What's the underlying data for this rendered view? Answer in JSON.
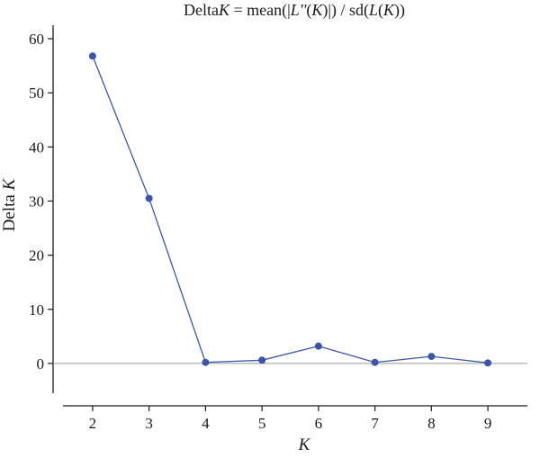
{
  "chart_data": {
    "type": "line",
    "title_parts": [
      {
        "text": "Delta",
        "italic": false
      },
      {
        "text": "K",
        "italic": true
      },
      {
        "text": " = mean(|",
        "italic": false
      },
      {
        "text": "L''",
        "italic": true
      },
      {
        "text": "(",
        "italic": false
      },
      {
        "text": "K",
        "italic": true
      },
      {
        "text": ")|) / sd(",
        "italic": false
      },
      {
        "text": "L",
        "italic": true
      },
      {
        "text": "(",
        "italic": false
      },
      {
        "text": "K",
        "italic": true
      },
      {
        "text": "))",
        "italic": false
      }
    ],
    "xlabel": "K",
    "ylabel_parts": [
      {
        "text": "Delta ",
        "italic": false
      },
      {
        "text": "K",
        "italic": true
      }
    ],
    "x": [
      2,
      3,
      4,
      5,
      6,
      7,
      8,
      9
    ],
    "series": [
      {
        "values": [
          56.8,
          30.5,
          0.2,
          0.6,
          3.2,
          0.2,
          1.3,
          0.1
        ],
        "color": "#3a56a8"
      }
    ],
    "xlim": [
      1.3,
      9.7
    ],
    "ylim": [
      -5.5,
      62.5
    ],
    "xticks": [
      "2",
      "3",
      "4",
      "5",
      "6",
      "7",
      "8",
      "9"
    ],
    "yticks": [
      "0",
      "10",
      "20",
      "30",
      "40",
      "50",
      "60"
    ],
    "reference_line_y": 0,
    "grid": false,
    "legend": "none"
  }
}
